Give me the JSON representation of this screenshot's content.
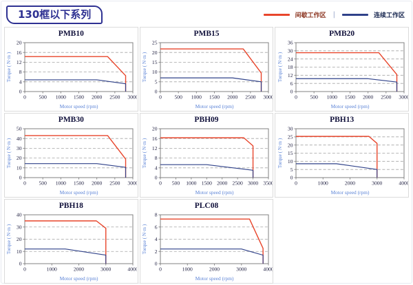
{
  "page": {
    "title": "130框以下系列",
    "legend_intermittent": "间歇工作区",
    "legend_continuous": "连续工作区",
    "legend_separator": "|"
  },
  "colors": {
    "intermittent": "#e8452b",
    "continuous": "#2f4189",
    "intermittent_label": "#8f3a26",
    "continuous_label": "#1b2a52",
    "grid": "#a3a3a3",
    "frame": "#808080",
    "tick_text": "#1b1b3d",
    "axis_label": "#5b83d6",
    "title_box": "#2e3192",
    "panel_border": "#dbdbdb"
  },
  "axis_labels": {
    "x": "Motor speed (rpm)",
    "y": "Torque ( N·m )"
  },
  "chart_data": [
    {
      "type": "line",
      "title": "PMB10",
      "xlabel": "Motor speed (rpm)",
      "ylabel": "Torque ( N·m )",
      "xlim": [
        0,
        3000
      ],
      "ylim": [
        0,
        20
      ],
      "xticks": [
        0,
        500,
        1000,
        1500,
        2000,
        2500,
        3000
      ],
      "yticks": [
        0,
        4,
        8,
        12,
        16,
        20
      ],
      "grid": "horizontal-dashed",
      "legend_position": "none",
      "series": [
        {
          "name": "间歇工作区",
          "color_key": "intermittent",
          "points": [
            [
              0,
              14.3
            ],
            [
              2300,
              14.3
            ],
            [
              2800,
              6.5
            ],
            [
              2800,
              0
            ]
          ]
        },
        {
          "name": "连续工作区",
          "color_key": "continuous",
          "points": [
            [
              0,
              4.8
            ],
            [
              2000,
              4.8
            ],
            [
              2800,
              3.2
            ],
            [
              2800,
              0
            ]
          ]
        }
      ]
    },
    {
      "type": "line",
      "title": "PMB15",
      "xlabel": "Motor speed (rpm)",
      "ylabel": "Torque ( N·m )",
      "xlim": [
        0,
        3000
      ],
      "ylim": [
        0,
        25
      ],
      "xticks": [
        0,
        500,
        1000,
        1500,
        2000,
        2500,
        3000
      ],
      "yticks": [
        0,
        5,
        10,
        15,
        20,
        25
      ],
      "grid": "horizontal-dashed",
      "legend_position": "none",
      "series": [
        {
          "name": "间歇工作区",
          "color_key": "intermittent",
          "points": [
            [
              0,
              21.8
            ],
            [
              2300,
              21.8
            ],
            [
              2800,
              9.5
            ],
            [
              2800,
              0
            ]
          ]
        },
        {
          "name": "连续工作区",
          "color_key": "continuous",
          "points": [
            [
              0,
              7
            ],
            [
              2000,
              7
            ],
            [
              2800,
              5
            ],
            [
              2800,
              0
            ]
          ]
        }
      ]
    },
    {
      "type": "line",
      "title": "PMB20",
      "xlabel": "Motor speed (rpm)",
      "ylabel": "Torque ( N·m )",
      "xlim": [
        0,
        3000
      ],
      "ylim": [
        0,
        36
      ],
      "xticks": [
        0,
        500,
        1000,
        1500,
        2000,
        2500,
        3000
      ],
      "yticks": [
        0,
        6,
        12,
        18,
        24,
        30,
        36
      ],
      "grid": "horizontal-dashed",
      "legend_position": "none",
      "series": [
        {
          "name": "间歇工作区",
          "color_key": "intermittent",
          "points": [
            [
              0,
              28.6
            ],
            [
              2300,
              28.6
            ],
            [
              2800,
              12.5
            ],
            [
              2800,
              0
            ]
          ]
        },
        {
          "name": "连续工作区",
          "color_key": "continuous",
          "points": [
            [
              0,
              9.5
            ],
            [
              2000,
              9.5
            ],
            [
              2800,
              7
            ],
            [
              2800,
              0
            ]
          ]
        }
      ]
    },
    {
      "type": "line",
      "title": "PMB30",
      "xlabel": "Motor speed (rpm)",
      "ylabel": "Torque ( N·m )",
      "xlim": [
        0,
        3000
      ],
      "ylim": [
        0,
        50
      ],
      "xticks": [
        0,
        500,
        1000,
        1500,
        2000,
        2500,
        3000
      ],
      "yticks": [
        0,
        10,
        20,
        30,
        40,
        50
      ],
      "grid": "horizontal-dashed",
      "legend_position": "none",
      "series": [
        {
          "name": "间歇工作区",
          "color_key": "intermittent",
          "points": [
            [
              0,
              43
            ],
            [
              2300,
              43
            ],
            [
              2800,
              19
            ],
            [
              2800,
              0
            ]
          ]
        },
        {
          "name": "连续工作区",
          "color_key": "continuous",
          "points": [
            [
              0,
              14.3
            ],
            [
              2000,
              14.3
            ],
            [
              2800,
              10.5
            ],
            [
              2800,
              0
            ]
          ]
        }
      ]
    },
    {
      "type": "line",
      "title": "PBH09",
      "xlabel": "Motor speed (rpm)",
      "ylabel": "Torque ( N·m )",
      "xlim": [
        0,
        3500
      ],
      "ylim": [
        0,
        20
      ],
      "xticks": [
        0,
        500,
        1000,
        1500,
        2000,
        2500,
        3000,
        3500
      ],
      "yticks": [
        0,
        4,
        8,
        12,
        16,
        20
      ],
      "grid": "horizontal-dashed",
      "legend_position": "none",
      "series": [
        {
          "name": "间歇工作区",
          "color_key": "intermittent",
          "points": [
            [
              0,
              16.3
            ],
            [
              2700,
              16.3
            ],
            [
              3000,
              13
            ],
            [
              3000,
              0
            ]
          ]
        },
        {
          "name": "连续工作区",
          "color_key": "continuous",
          "points": [
            [
              0,
              5.3
            ],
            [
              1500,
              5.3
            ],
            [
              3000,
              3
            ],
            [
              3000,
              0
            ]
          ]
        }
      ]
    },
    {
      "type": "line",
      "title": "PBH13",
      "xlabel": "Motor speed (rpm)",
      "ylabel": "Torque ( N·m )",
      "xlim": [
        0,
        4000
      ],
      "ylim": [
        0,
        30
      ],
      "xticks": [
        0,
        1000,
        2000,
        3000,
        4000
      ],
      "yticks": [
        0,
        5,
        10,
        15,
        20,
        25,
        30
      ],
      "grid": "horizontal-dashed",
      "legend_position": "none",
      "series": [
        {
          "name": "间歇工作区",
          "color_key": "intermittent",
          "points": [
            [
              0,
              25.3
            ],
            [
              2700,
              25.3
            ],
            [
              3000,
              21
            ],
            [
              3000,
              0
            ]
          ]
        },
        {
          "name": "连续工作区",
          "color_key": "continuous",
          "points": [
            [
              0,
              8.5
            ],
            [
              1500,
              8.5
            ],
            [
              3000,
              5
            ],
            [
              3000,
              0
            ]
          ]
        }
      ]
    },
    {
      "type": "line",
      "title": "PBH18",
      "xlabel": "Motor speed (rpm)",
      "ylabel": "Torque ( N·m )",
      "xlim": [
        0,
        4000
      ],
      "ylim": [
        0,
        40
      ],
      "xticks": [
        0,
        1000,
        2000,
        3000,
        4000
      ],
      "yticks": [
        0,
        10,
        20,
        30,
        40
      ],
      "grid": "horizontal-dashed",
      "legend_position": "none",
      "series": [
        {
          "name": "间歇工作区",
          "color_key": "intermittent",
          "points": [
            [
              0,
              35
            ],
            [
              2650,
              35
            ],
            [
              3000,
              29
            ],
            [
              3000,
              0
            ]
          ]
        },
        {
          "name": "连续工作区",
          "color_key": "continuous",
          "points": [
            [
              0,
              12
            ],
            [
              1500,
              12
            ],
            [
              3000,
              7
            ],
            [
              3000,
              0
            ]
          ]
        }
      ]
    },
    {
      "type": "line",
      "title": "PLC08",
      "xlabel": "Motor speed (rpm)",
      "ylabel": "Torque ( N·m )",
      "xlim": [
        0,
        4000
      ],
      "ylim": [
        0,
        8
      ],
      "xticks": [
        0,
        1000,
        2000,
        3000,
        4000
      ],
      "yticks": [
        0,
        2,
        4,
        6,
        8
      ],
      "grid": "horizontal-dashed",
      "legend_position": "none",
      "series": [
        {
          "name": "间歇工作区",
          "color_key": "intermittent",
          "points": [
            [
              0,
              7.3
            ],
            [
              3300,
              7.3
            ],
            [
              3800,
              2.5
            ],
            [
              3800,
              0
            ]
          ]
        },
        {
          "name": "连续工作区",
          "color_key": "continuous",
          "points": [
            [
              0,
              2.4
            ],
            [
              3000,
              2.4
            ],
            [
              3800,
              1.4
            ],
            [
              3800,
              0
            ]
          ]
        }
      ]
    }
  ]
}
